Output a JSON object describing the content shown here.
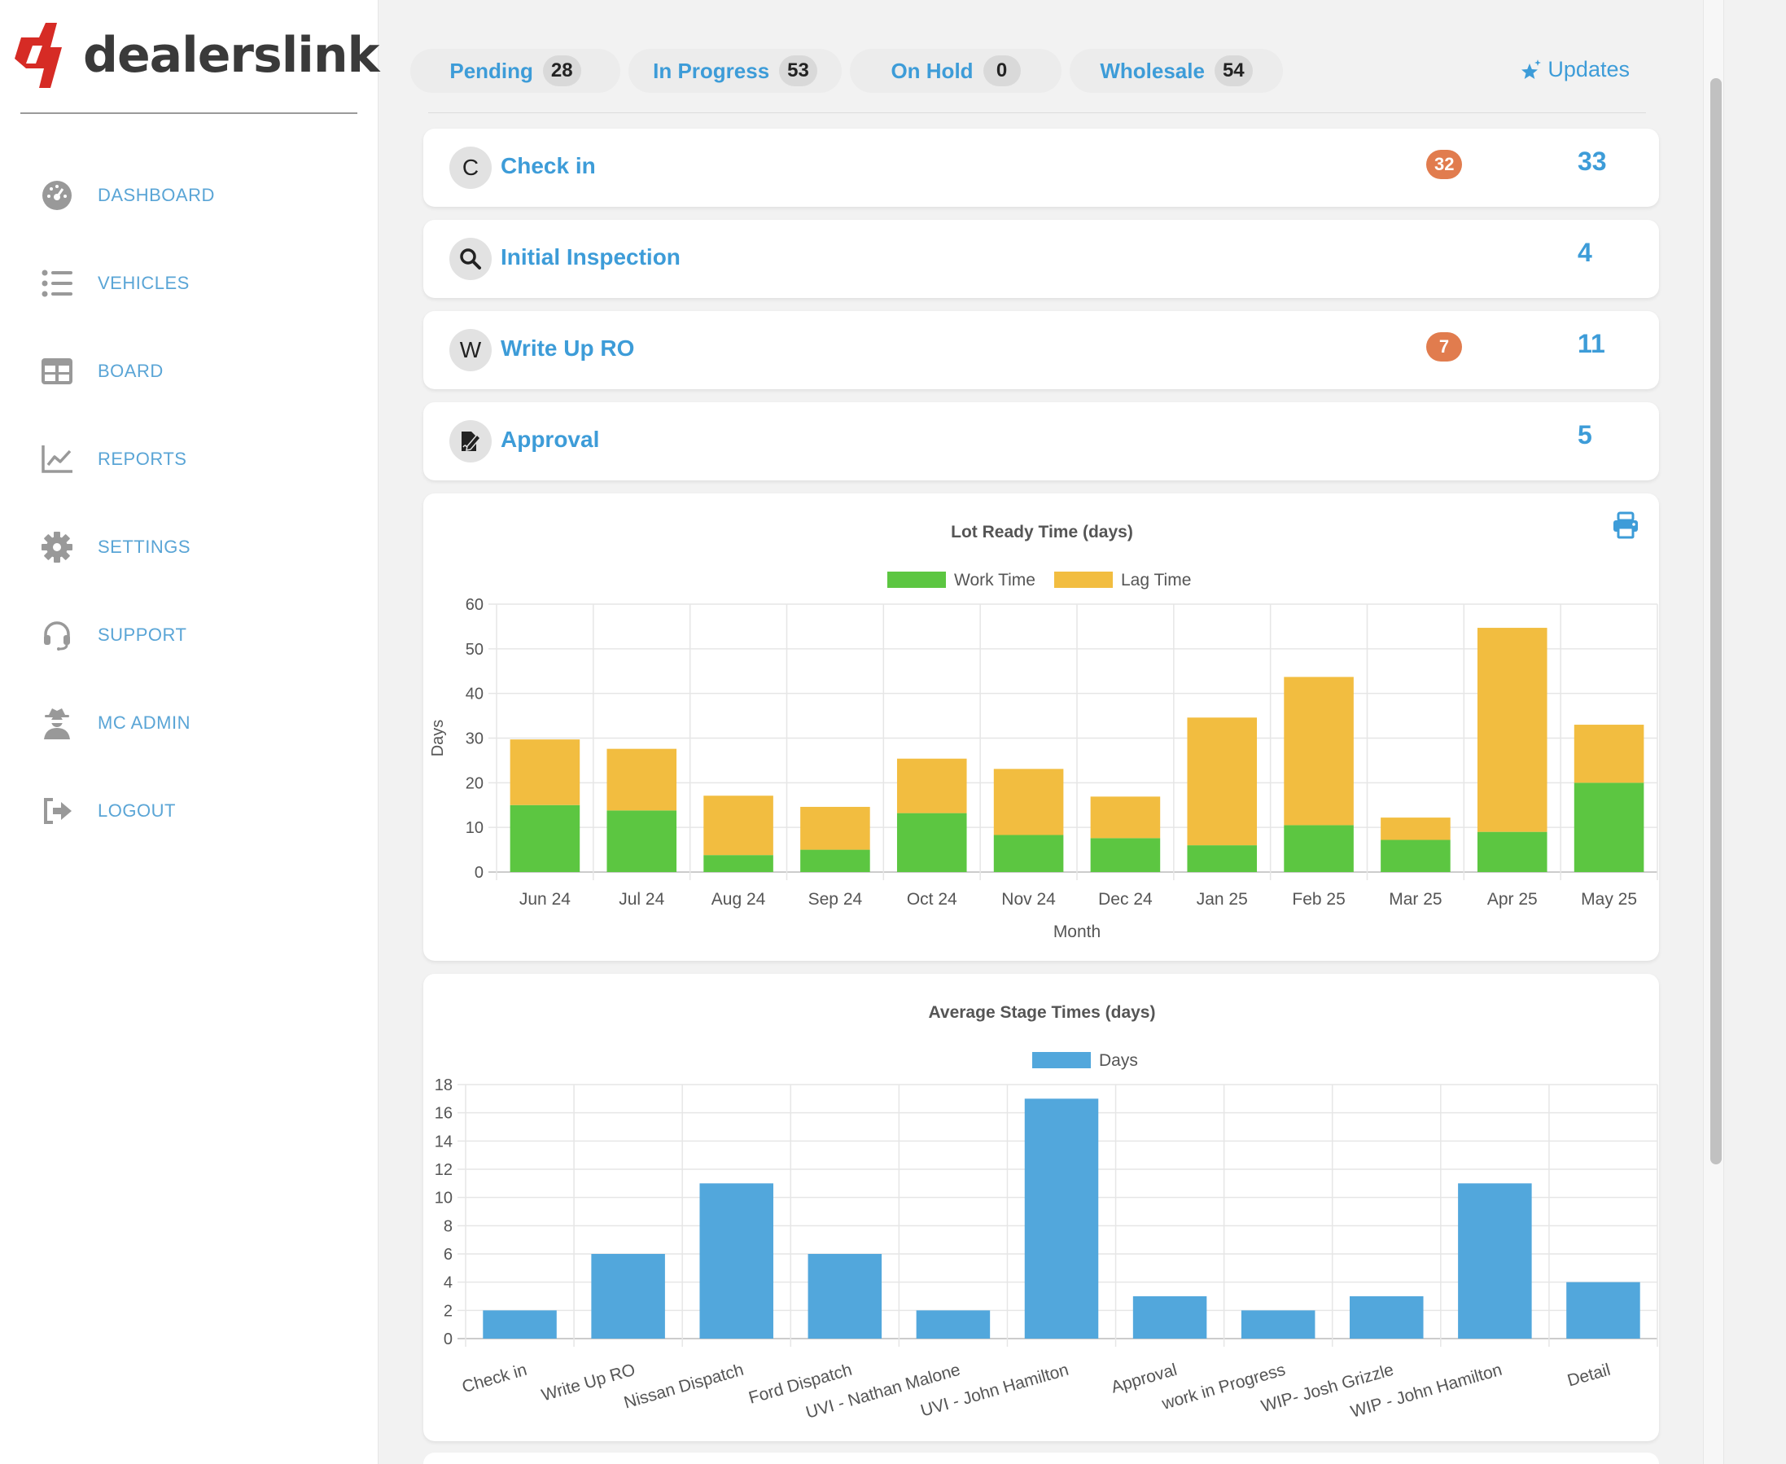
{
  "brand": {
    "name": "dealerslink"
  },
  "sidebar": {
    "items": [
      {
        "label": "DASHBOARD",
        "icon": "dashboard-gauge-icon"
      },
      {
        "label": "VEHICLES",
        "icon": "list-icon"
      },
      {
        "label": "BOARD",
        "icon": "board-grid-icon"
      },
      {
        "label": "REPORTS",
        "icon": "line-chart-icon"
      },
      {
        "label": "SETTINGS",
        "icon": "gear-icon"
      },
      {
        "label": "SUPPORT",
        "icon": "headset-icon"
      },
      {
        "label": "MC ADMIN",
        "icon": "user-secret-icon"
      },
      {
        "label": "LOGOUT",
        "icon": "logout-icon"
      }
    ]
  },
  "tabs": [
    {
      "label": "Pending",
      "count": "28"
    },
    {
      "label": "In Progress",
      "count": "53"
    },
    {
      "label": "On Hold",
      "count": "0"
    },
    {
      "label": "Wholesale",
      "count": "54"
    }
  ],
  "updates": {
    "label": "Updates"
  },
  "stages": [
    {
      "icon_text": "C",
      "name": "Check in",
      "badge": "32",
      "count": "33"
    },
    {
      "icon_text": "",
      "icon": "search-icon",
      "name": "Initial Inspection",
      "badge": "",
      "count": "4"
    },
    {
      "icon_text": "W",
      "name": "Write Up RO",
      "badge": "7",
      "count": "11"
    },
    {
      "icon_text": "",
      "icon": "signature-icon",
      "name": "Approval",
      "badge": "",
      "count": "5"
    }
  ],
  "colors": {
    "accent": "#3d9cd8",
    "work": "#5cc641",
    "lag": "#f2bd40",
    "days": "#52a7dc",
    "badge": "#e17c4e"
  },
  "chart_data": [
    {
      "type": "bar",
      "stacked": true,
      "title": "Lot Ready Time (days)",
      "xlabel": "Month",
      "ylabel": "Days",
      "ylim": [
        0,
        60
      ],
      "yticks": [
        0,
        10,
        20,
        30,
        40,
        50,
        60
      ],
      "legend": "top",
      "grid": true,
      "categories": [
        "Jun 24",
        "Jul 24",
        "Aug 24",
        "Sep 24",
        "Oct 24",
        "Nov 24",
        "Dec 24",
        "Jan 25",
        "Feb 25",
        "Mar 25",
        "Apr 25",
        "May 25"
      ],
      "series": [
        {
          "name": "Work Time",
          "color": "#5cc641",
          "values": [
            15,
            13.8,
            3.8,
            5,
            13.2,
            8.3,
            7.6,
            6,
            10.5,
            7.2,
            9,
            20
          ]
        },
        {
          "name": "Lag Time",
          "color": "#f2bd40",
          "values": [
            14.7,
            13.8,
            13.3,
            9.6,
            12.2,
            14.8,
            9.3,
            28.6,
            33.2,
            5,
            45.7,
            13
          ]
        }
      ]
    },
    {
      "type": "bar",
      "title": "Average Stage Times (days)",
      "ylim": [
        0,
        18
      ],
      "yticks": [
        0,
        2,
        4,
        6,
        8,
        10,
        12,
        14,
        16,
        18
      ],
      "legend": "top",
      "grid": true,
      "categories": [
        "Check in",
        "Write Up RO",
        "Nissan Dispatch",
        "Ford Dispatch",
        "UVI - Nathan Malone",
        "UVI - John Hamilton",
        "Approval",
        "work in Progress",
        "WIP- Josh Grizzle",
        "WIP - John Hamilton",
        "Detail"
      ],
      "series": [
        {
          "name": "Days",
          "color": "#52a7dc",
          "values": [
            2,
            6,
            11,
            6,
            2,
            17,
            3,
            2,
            3,
            11,
            4
          ]
        }
      ]
    }
  ]
}
